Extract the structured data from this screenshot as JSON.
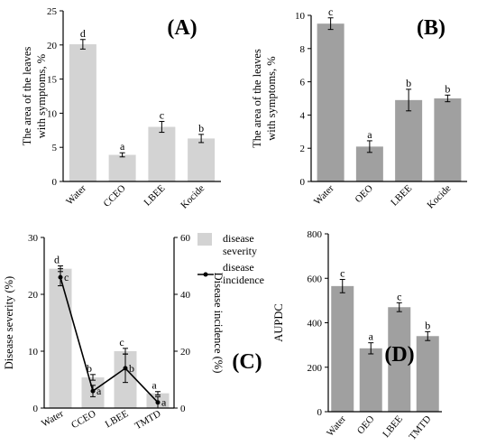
{
  "chart_data": [
    {
      "panel": "(A)",
      "type": "bar",
      "ylabel": [
        "The area of the leaves",
        "with symptoms, %"
      ],
      "ylim": [
        0,
        25
      ],
      "yticks": [
        0,
        5,
        10,
        15,
        20,
        25
      ],
      "categories": [
        "Water",
        "CCEO",
        "LBEE",
        "Kocide"
      ],
      "values": [
        20.1,
        3.9,
        8.0,
        6.3
      ],
      "errors": [
        0.7,
        0.3,
        0.8,
        0.6
      ],
      "letters": [
        "d",
        "a",
        "c",
        "b"
      ],
      "bar_color": "#d3d3d3"
    },
    {
      "panel": "(B)",
      "type": "bar",
      "ylabel": [
        "The area of the leaves",
        "with symptoms, %"
      ],
      "ylim": [
        0,
        10
      ],
      "yticks": [
        0,
        2,
        4,
        6,
        8,
        10
      ],
      "categories": [
        "Water",
        "OEO",
        "LBEE",
        "Kocide"
      ],
      "values": [
        9.5,
        2.1,
        4.9,
        5.0
      ],
      "errors": [
        0.35,
        0.35,
        0.65,
        0.2
      ],
      "letters": [
        "c",
        "a",
        "b",
        "b"
      ],
      "bar_color": "#a0a0a0"
    },
    {
      "panel": "(C)",
      "type": "bar+line",
      "ylabel": "Disease severity (%)",
      "y2label": "Disease incidence (%)",
      "ylim": [
        0,
        30
      ],
      "yticks": [
        0,
        10,
        20,
        30
      ],
      "y2lim": [
        0,
        60
      ],
      "y2ticks": [
        0,
        20,
        40,
        60
      ],
      "categories": [
        "Water",
        "CCEO",
        "LBEE",
        "TMTD"
      ],
      "series": [
        {
          "name": "disease severity",
          "kind": "bar",
          "axis": "left",
          "values": [
            24.5,
            5.4,
            10.0,
            2.6
          ],
          "errors": [
            0.5,
            0.5,
            0.5,
            0.3
          ],
          "letters": [
            "d",
            "b",
            "c",
            "a"
          ]
        },
        {
          "name": "disease incidence",
          "kind": "line",
          "axis": "right",
          "values": [
            46,
            6,
            14,
            2
          ],
          "errors": [
            3,
            2,
            5,
            2
          ],
          "letters": [
            "c",
            "a",
            "b",
            "a"
          ]
        }
      ],
      "legend": "top-right",
      "bar_color": "#d3d3d3"
    },
    {
      "panel": "(D)",
      "type": "bar",
      "ylabel": "AUPDC",
      "ylim": [
        0,
        800
      ],
      "yticks": [
        0,
        200,
        400,
        600,
        800
      ],
      "categories": [
        "Water",
        "OEO",
        "LBEE",
        "TMTD"
      ],
      "values": [
        565,
        285,
        470,
        340
      ],
      "errors": [
        30,
        25,
        20,
        20
      ],
      "letters": [
        "c",
        "a",
        "c",
        "b"
      ],
      "bar_color": "#a0a0a0"
    }
  ]
}
